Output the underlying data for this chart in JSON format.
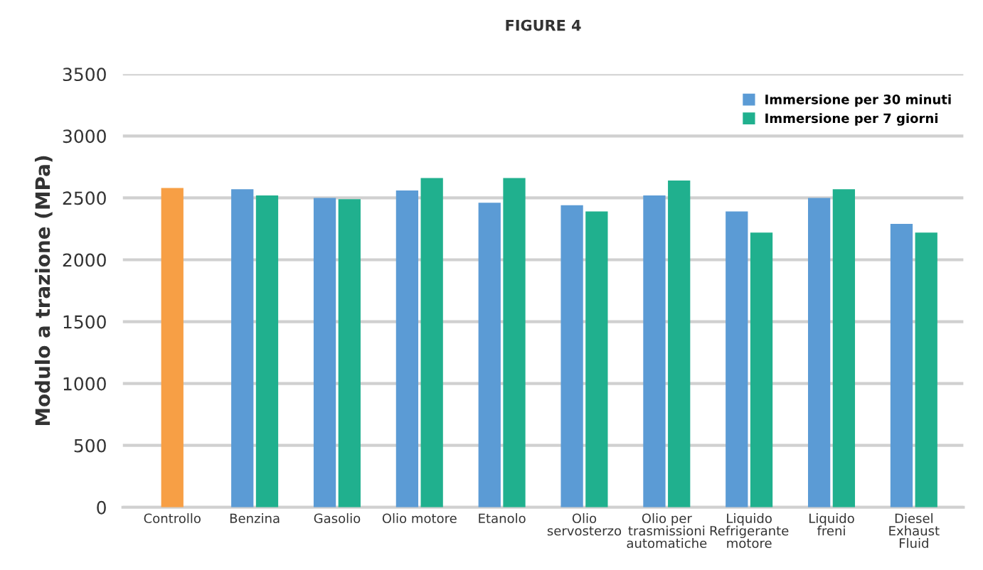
{
  "chart_data": {
    "type": "bar",
    "title": "FIGURE 4",
    "ylabel": "Modulo a trazione (MPa)",
    "categories": [
      "Controllo",
      "Benzina",
      "Gasolio",
      "Olio motore",
      "Etanolo",
      "Olio\nservosterzo",
      "Olio per\ntrasmissioni\nautomatiche",
      "Liquido\nRefrigerante\nmotore",
      "Liquido\nfreni",
      "Diesel\nExhaust\nFluid"
    ],
    "series": [
      {
        "color": "#f79f45",
        "values": [
          2580,
          null,
          null,
          null,
          null,
          null,
          null,
          null,
          null,
          null
        ]
      },
      {
        "name": "Immersione per 30 minuti",
        "color": "#5b9bd5",
        "values": [
          null,
          2570,
          2500,
          2560,
          2460,
          2440,
          2520,
          2390,
          2500,
          2290
        ]
      },
      {
        "name": "Immersione per 7 giorni",
        "color": "#20b08e",
        "values": [
          null,
          2520,
          2490,
          2660,
          2660,
          2390,
          2640,
          2220,
          2570,
          2220
        ]
      }
    ],
    "ylim": [
      0,
      3500
    ],
    "yticks": [
      0,
      500,
      1000,
      1500,
      2000,
      2500,
      3000,
      3500
    ],
    "grid": "y",
    "legend": "top right"
  }
}
